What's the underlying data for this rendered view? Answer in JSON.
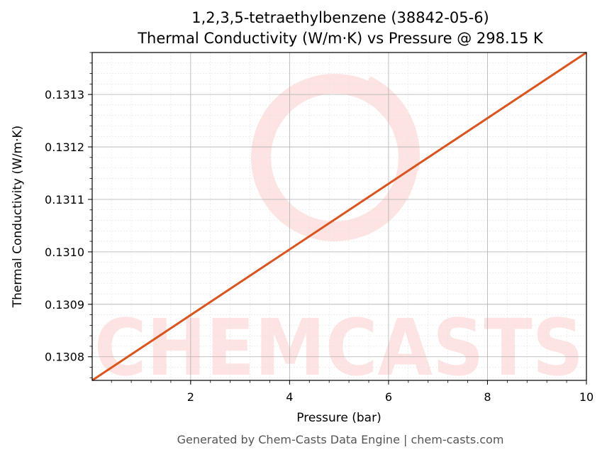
{
  "chart_data": {
    "type": "line",
    "title_line1": "1,2,3,5-tetraethylbenzene (38842-05-6)",
    "title_line2": "Thermal Conductivity (W/m·K) vs Pressure @ 298.15 K",
    "xlabel": "Pressure (bar)",
    "ylabel": "Thermal Conductivity (W/m·K)",
    "xlim": [
      0.01,
      10
    ],
    "ylim": [
      0.130755,
      0.13138
    ],
    "x_ticks": [
      2,
      4,
      6,
      8,
      10
    ],
    "x_tick_labels": [
      "2",
      "4",
      "6",
      "8",
      "10"
    ],
    "y_ticks": [
      0.1308,
      0.1309,
      0.131,
      0.1311,
      0.1312,
      0.1313
    ],
    "y_tick_labels": [
      "0.1308",
      "0.1309",
      "0.1310",
      "0.1311",
      "0.1312",
      "0.1313"
    ],
    "grid": true,
    "series": [
      {
        "color": "#d9541e",
        "x": [
          0.01,
          10
        ],
        "y": [
          0.130755,
          0.13138
        ]
      }
    ]
  },
  "watermark": {
    "text": "CHEMCASTS",
    "color": "#fde3e1"
  },
  "footer": {
    "text": "Generated by Chem-Casts Data Engine | chem-casts.com"
  }
}
